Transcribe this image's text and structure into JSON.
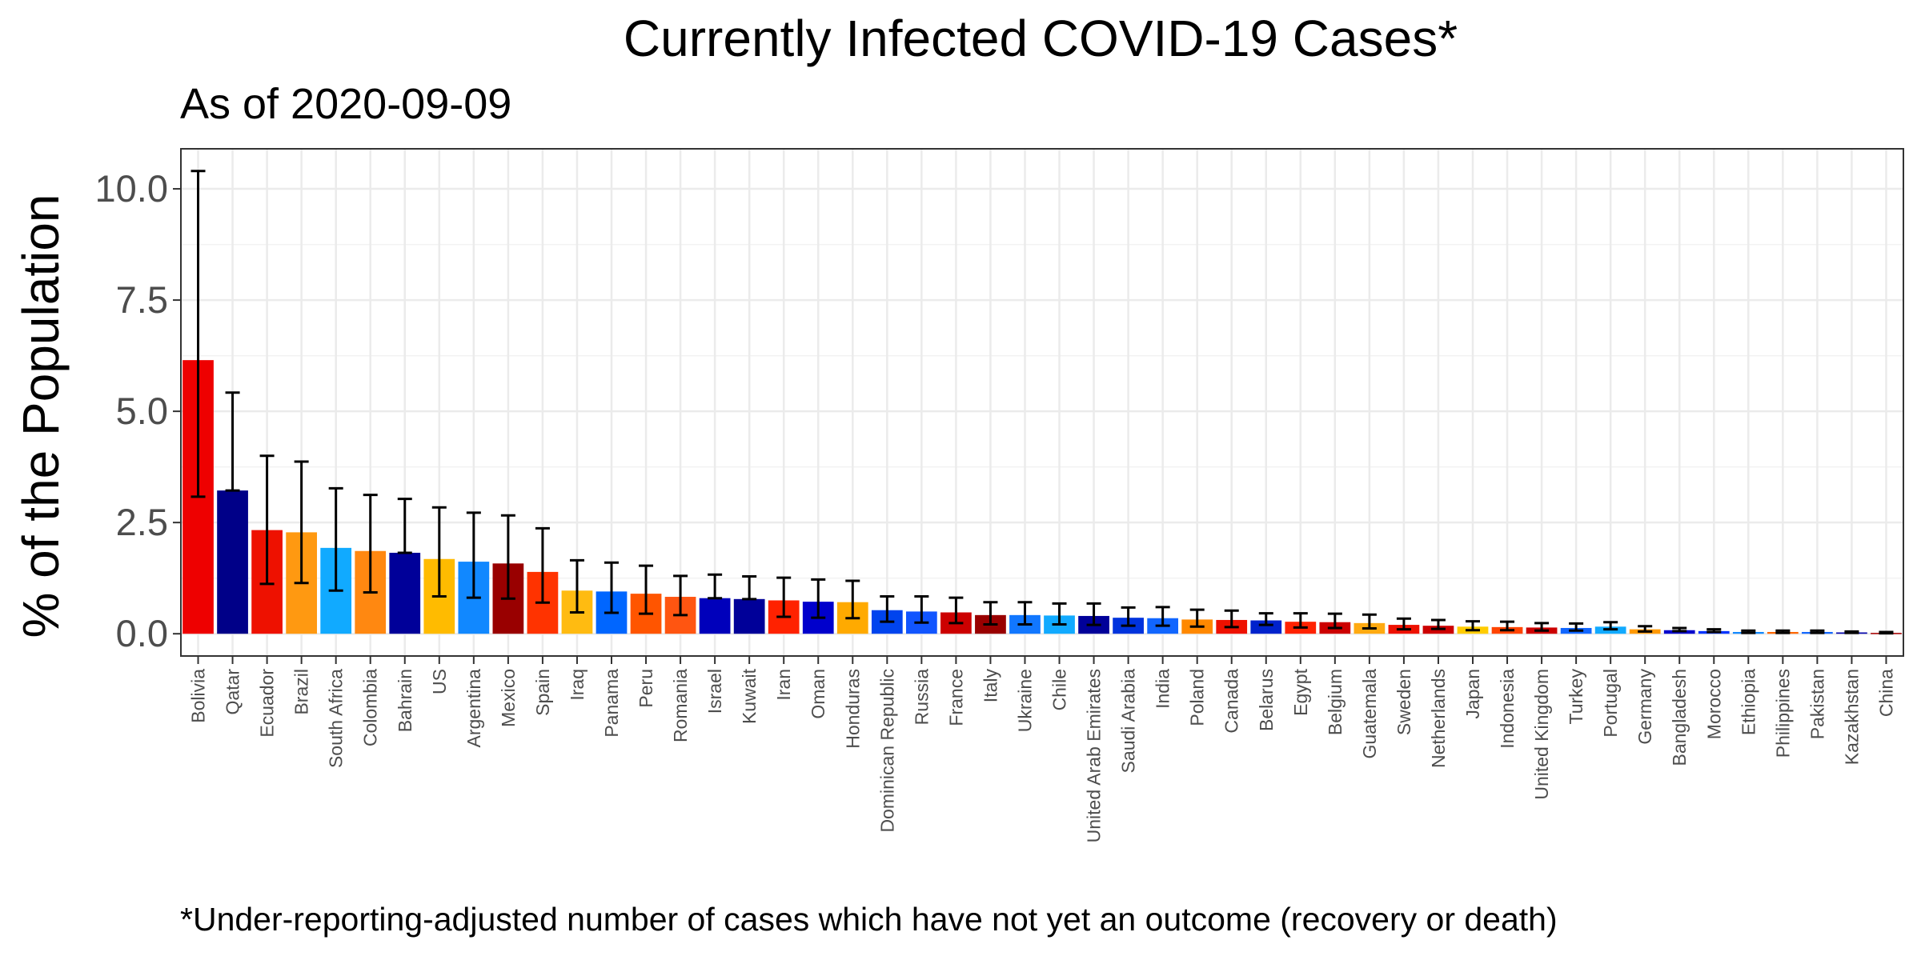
{
  "chart_data": {
    "type": "bar",
    "title": "Currently Infected COVID-19 Cases*",
    "subtitle": "As of 2020-09-09",
    "ylabel": "% of the Population",
    "xlabel": "",
    "caption": "*Under-reporting-adjusted number of cases which have not yet an outcome (recovery or death)",
    "ylim": [
      -0.5,
      10.9
    ],
    "yticks": [
      0.0,
      2.5,
      5.0,
      7.5,
      10.0
    ],
    "ytick_labels": [
      "0.0",
      "2.5",
      "5.0",
      "7.5",
      "10.0"
    ],
    "grid": true,
    "legend": "none",
    "categories": [
      "Bolivia",
      "Qatar",
      "Ecuador",
      "Brazil",
      "South Africa",
      "Colombia",
      "Bahrain",
      "US",
      "Argentina",
      "Mexico",
      "Spain",
      "Iraq",
      "Panama",
      "Peru",
      "Romania",
      "Israel",
      "Kuwait",
      "Iran",
      "Oman",
      "Honduras",
      "Dominican Republic",
      "Russia",
      "France",
      "Italy",
      "Ukraine",
      "Chile",
      "United Arab Emirates",
      "Saudi Arabia",
      "India",
      "Poland",
      "Canada",
      "Belarus",
      "Egypt",
      "Belgium",
      "Guatemala",
      "Sweden",
      "Netherlands",
      "Japan",
      "Indonesia",
      "United Kingdom",
      "Turkey",
      "Portugal",
      "Germany",
      "Bangladesh",
      "Morocco",
      "Ethiopia",
      "Philippines",
      "Pakistan",
      "Kazakhstan",
      "China"
    ],
    "values": [
      6.15,
      3.22,
      2.33,
      2.28,
      1.93,
      1.86,
      1.82,
      1.68,
      1.62,
      1.58,
      1.39,
      0.97,
      0.95,
      0.9,
      0.83,
      0.8,
      0.78,
      0.75,
      0.72,
      0.71,
      0.53,
      0.5,
      0.48,
      0.42,
      0.42,
      0.41,
      0.4,
      0.36,
      0.35,
      0.32,
      0.31,
      0.3,
      0.27,
      0.26,
      0.24,
      0.2,
      0.18,
      0.16,
      0.15,
      0.14,
      0.13,
      0.16,
      0.1,
      0.08,
      0.06,
      0.04,
      0.04,
      0.04,
      0.03,
      0.02
    ],
    "error_low": [
      3.08,
      3.22,
      1.12,
      1.14,
      0.97,
      0.93,
      1.82,
      0.84,
      0.81,
      0.79,
      0.7,
      0.48,
      0.47,
      0.45,
      0.42,
      0.8,
      0.78,
      0.38,
      0.36,
      0.35,
      0.27,
      0.25,
      0.24,
      0.21,
      0.21,
      0.21,
      0.2,
      0.18,
      0.18,
      0.16,
      0.15,
      0.2,
      0.14,
      0.13,
      0.12,
      0.1,
      0.11,
      0.08,
      0.08,
      0.07,
      0.07,
      0.1,
      0.05,
      0.06,
      0.04,
      0.02,
      0.02,
      0.02,
      0.02,
      0.01
    ],
    "error_high": [
      10.4,
      5.42,
      4.0,
      3.87,
      3.27,
      3.12,
      3.03,
      2.84,
      2.72,
      2.66,
      2.37,
      1.65,
      1.6,
      1.53,
      1.3,
      1.33,
      1.29,
      1.26,
      1.22,
      1.19,
      0.84,
      0.84,
      0.81,
      0.71,
      0.71,
      0.68,
      0.68,
      0.59,
      0.6,
      0.54,
      0.52,
      0.46,
      0.46,
      0.45,
      0.43,
      0.34,
      0.31,
      0.28,
      0.27,
      0.24,
      0.23,
      0.26,
      0.17,
      0.13,
      0.1,
      0.07,
      0.07,
      0.07,
      0.05,
      0.04
    ],
    "colors": [
      "#ee0000",
      "#000088",
      "#ee1100",
      "#ff9911",
      "#11aaff",
      "#ff8811",
      "#000099",
      "#ffbb00",
      "#1188ff",
      "#990000",
      "#ff3300",
      "#ffbb11",
      "#0066ff",
      "#ff5500",
      "#ff5511",
      "#0000bb",
      "#000099",
      "#ff2200",
      "#0000cc",
      "#ffaa00",
      "#0044ee",
      "#1155ff",
      "#cc0000",
      "#990000",
      "#1177ff",
      "#11aaff",
      "#000099",
      "#0033dd",
      "#1166ff",
      "#ff8800",
      "#ee1100",
      "#0022cc",
      "#ff2200",
      "#cc0000",
      "#ffaa11",
      "#ee1100",
      "#cc0000",
      "#ffcc00",
      "#ff4400",
      "#cc0000",
      "#1166ff",
      "#11aaff",
      "#ff9900",
      "#0000cc",
      "#0033ff",
      "#1188ff",
      "#ff6600",
      "#1166ff",
      "#0000aa",
      "#aa0000"
    ]
  }
}
